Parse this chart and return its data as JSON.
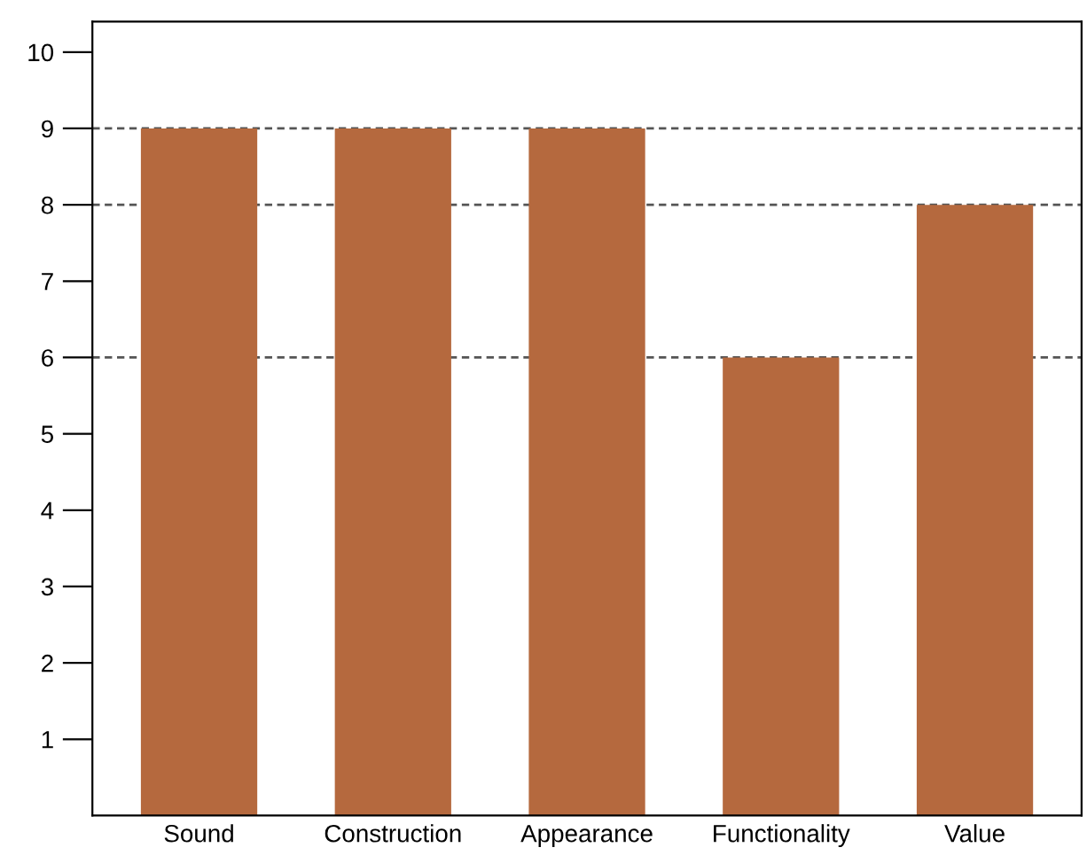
{
  "chart_data": {
    "type": "bar",
    "categories": [
      "Sound",
      "Construction",
      "Appearance",
      "Functionality",
      "Value"
    ],
    "values": [
      9,
      9,
      9,
      6,
      8
    ],
    "color": "#b5693e",
    "ylim": [
      0,
      10.4
    ],
    "yticks": [
      1,
      2,
      3,
      4,
      5,
      6,
      7,
      8,
      9,
      10
    ],
    "ref_lines": [
      {
        "axis": "y",
        "value": 9,
        "line_style": "dashed",
        "color": "#555555"
      },
      {
        "axis": "y",
        "value": 8,
        "line_style": "dashed",
        "color": "#555555"
      },
      {
        "axis": "y",
        "value": 6,
        "line_style": "dashed",
        "color": "#555555"
      }
    ],
    "grid": false,
    "legend": false
  }
}
